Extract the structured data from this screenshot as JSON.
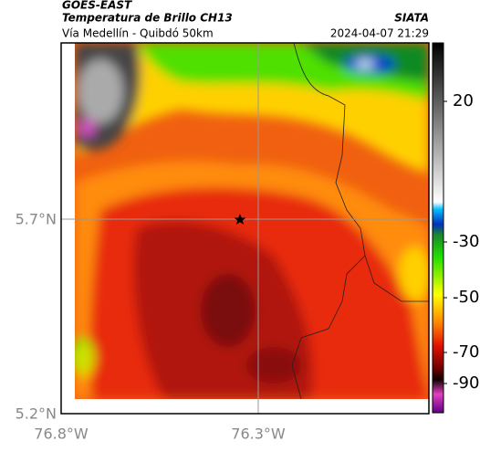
{
  "header": {
    "source": "GOES-EAST",
    "title": "Temperatura de Brillo CH13",
    "subtitle": "Vía Medellín - Quibdó 50km",
    "agency": "SIATA",
    "timestamp": "2024-04-07 21:29"
  },
  "axes": {
    "lat_labels": [
      "5.7°N",
      "5.2°N"
    ],
    "lon_labels": [
      "76.8°W",
      "76.3°W"
    ]
  },
  "colorbar": {
    "tick_labels": [
      "20",
      "-30",
      "-50",
      "-70",
      "-90"
    ]
  }
}
